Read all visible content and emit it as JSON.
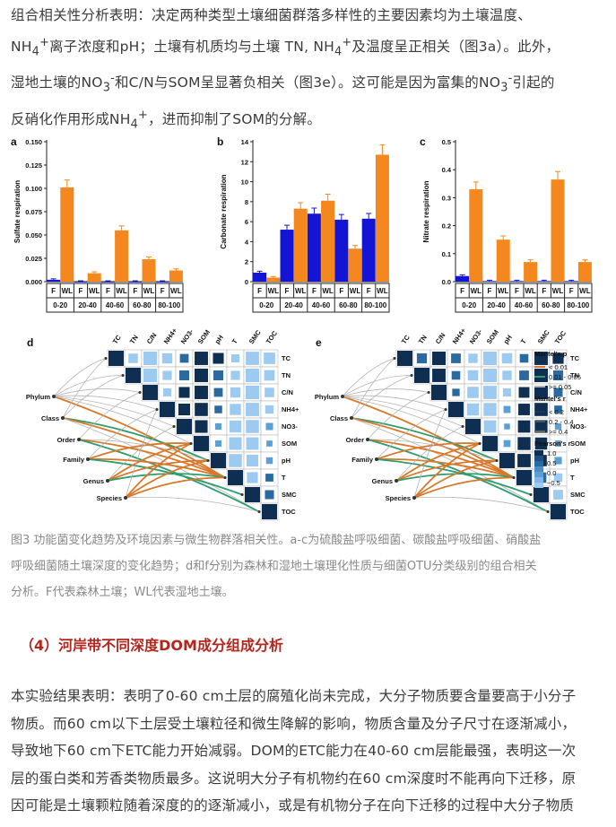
{
  "para1": {
    "line1": "组合相关性分析表明：决定两种类型土壤细菌群落多样性的主要因素均为土壤温度、",
    "line2a": "NH",
    "line2b": "4",
    "line2c": "+",
    "line2d": "离子浓度和pH；土壤有机质均与土壤 TN, NH",
    "line2e": "4",
    "line2f": "+",
    "line2g": "及温度呈正相关（图3a）。此外，",
    "line3a": "湿地土壤的NO",
    "line3b": "3",
    "line3c": "-",
    "line3d": "和C/N与SOM呈显著负相关（图3e）。这可能是因为富集的NO",
    "line3e": "3",
    "line3f": "-",
    "line3g": "引起的",
    "line4a": "反硝化作用形成NH",
    "line4b": "4",
    "line4c": "+",
    "line4d": "，进而抑制了SOM的分解。"
  },
  "figure": {
    "colors": {
      "forest": "#1414d4",
      "wetland": "#f5871f",
      "edge_orange": "#d9782a",
      "edge_green": "#2e9c6e",
      "edge_gray": "#b4b4b4"
    },
    "panels_bar": [
      {
        "letter": "a",
        "ylabel": "Sulfate respiration",
        "yticks": [
          "0.000",
          "0.025",
          "0.050",
          "0.075",
          "0.100",
          "0.125",
          "0.150"
        ],
        "ymax": 0.15
      },
      {
        "letter": "b",
        "ylabel": "Carbonate respiration",
        "yticks": [
          "0",
          "2",
          "4",
          "6",
          "8",
          "10",
          "12",
          "14"
        ],
        "ymax": 14
      },
      {
        "letter": "c",
        "ylabel": "Nitrate respiration",
        "yticks": [
          "0.0",
          "0.1",
          "0.2",
          "0.3",
          "0.4",
          "0.5"
        ],
        "ymax": 0.5
      }
    ],
    "group_labels": [
      "F",
      "WL"
    ],
    "depths": [
      "0-20",
      "20-40",
      "40-60",
      "60-80",
      "80-100"
    ],
    "panels_corr": [
      {
        "letter": "d"
      },
      {
        "letter": "e"
      }
    ],
    "corr_vars": [
      "TC",
      "TN",
      "C/N",
      "NH4+",
      "NO3-",
      "SOM",
      "pH",
      "T",
      "SMC",
      "TOC"
    ],
    "taxa": [
      "Phylum",
      "Class",
      "Order",
      "Family",
      "Genus",
      "Species"
    ],
    "legend": {
      "mantel_p_title": "Mantel's p",
      "mantel_p": [
        "< 0.01",
        "0.01 - 0.05",
        ">= 0.05"
      ],
      "mantel_r_title": "Mantel's r",
      "mantel_r": [
        "< 0.2",
        "0.2 - 0.4",
        ">= 0.4"
      ],
      "pearson_title": "Pearson's r",
      "pearson_ticks": [
        "1.0",
        "0.5",
        "0.0",
        "−0.5"
      ]
    }
  },
  "chart_data": [
    {
      "type": "bar",
      "title": "",
      "ylabel": "Sulfate respiration",
      "ylim": [
        0,
        0.15
      ],
      "categories": [
        "0-20",
        "20-40",
        "40-60",
        "60-80",
        "80-100"
      ],
      "series": [
        {
          "name": "F",
          "values": [
            0.002,
            0.0,
            0.0,
            0.0,
            0.0
          ]
        },
        {
          "name": "WL",
          "values": [
            0.101,
            0.009,
            0.055,
            0.024,
            0.012
          ]
        }
      ]
    },
    {
      "type": "bar",
      "title": "",
      "ylabel": "Carbonate respiration",
      "ylim": [
        0,
        14
      ],
      "categories": [
        "0-20",
        "20-40",
        "40-60",
        "60-80",
        "80-100"
      ],
      "series": [
        {
          "name": "F",
          "values": [
            0.9,
            5.2,
            6.8,
            6.2,
            6.3
          ]
        },
        {
          "name": "WL",
          "values": [
            0.4,
            7.3,
            8.1,
            3.3,
            12.7
          ]
        }
      ]
    },
    {
      "type": "bar",
      "title": "",
      "ylabel": "Nitrate respiration",
      "ylim": [
        0,
        0.5
      ],
      "categories": [
        "0-20",
        "20-40",
        "40-60",
        "60-80",
        "80-100"
      ],
      "series": [
        {
          "name": "F",
          "values": [
            0.02,
            0.002,
            0.002,
            0.002,
            0.002
          ]
        },
        {
          "name": "WL",
          "values": [
            0.33,
            0.15,
            0.07,
            0.365,
            0.07
          ]
        }
      ]
    }
  ],
  "caption": {
    "line1": "图3 功能菌变化趋势及环境因素与微生物群落相关性。a-c为硫酸盐呼吸细菌、碳酸盐呼吸细菌、硝酸盐",
    "line2": "呼吸细菌随土壤深度的变化趋势；d和f分别为森林和湿地土壤理化性质与细菌OTU分类级别的组合相关",
    "line3": "分析。F代表森林土壤；WL代表湿地土壤。"
  },
  "section_title": "（4）河岸带不同深度DOM成分组成分析",
  "para2": {
    "line1": "本实验结果表明：表明了0-60 cm土层的腐殖化尚未完成，大分子物质要含量要高于小分子",
    "line2": "物质。而60 cm以下土层受土壤粒径和微生降解的影响，物质含量及分子尺寸在逐渐减小，",
    "line3": "导致地下60 cm下ETC能力开始减弱。DOM的ETC能力在40-60 cm层能最强，表明这一次",
    "line4": "层的蛋白类和芳香类物质最多。这说明大分子有机物约在60 cm深度时不能再向下迁移，原",
    "line5": "因可能是土壤颗粒随着深度的的逐渐减小，或是有机物分子在向下迁移的过程中大分子物质"
  }
}
